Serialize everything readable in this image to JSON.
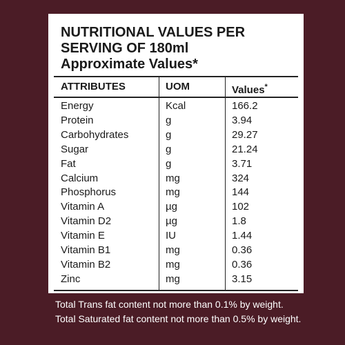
{
  "header": {
    "lines": [
      "NUTRITIONAL VALUES PER",
      "SERVING OF 180ml",
      "Approximate Values*"
    ]
  },
  "table": {
    "columns": [
      "ATTRIBUTES",
      "UOM",
      {
        "text": "Values",
        "mark": "*"
      }
    ],
    "rows": [
      [
        "Energy",
        "Kcal",
        "166.2"
      ],
      [
        "Protein",
        "g",
        "3.94"
      ],
      [
        "Carbohydrates",
        "g",
        "29.27"
      ],
      [
        "Sugar",
        "g",
        "21.24"
      ],
      [
        "Fat",
        "g",
        "3.71"
      ],
      [
        "Calcium",
        "mg",
        "324"
      ],
      [
        "Phosphorus",
        "mg",
        "144"
      ],
      [
        "Vitamin A",
        "µg",
        "102"
      ],
      [
        "Vitamin D2",
        "µg",
        "1.8"
      ],
      [
        "Vitamin E",
        "IU",
        "1.44"
      ],
      [
        "Vitamin B1",
        "mg",
        "0.36"
      ],
      [
        "Vitamin B2",
        "mg",
        "0.36"
      ],
      [
        "Zinc",
        "mg",
        "3.15"
      ]
    ]
  },
  "footer": {
    "lines": [
      "Total Trans fat content not more than 0.1% by weight.",
      "Total Saturated fat content not more than 0.5% by weight."
    ]
  }
}
